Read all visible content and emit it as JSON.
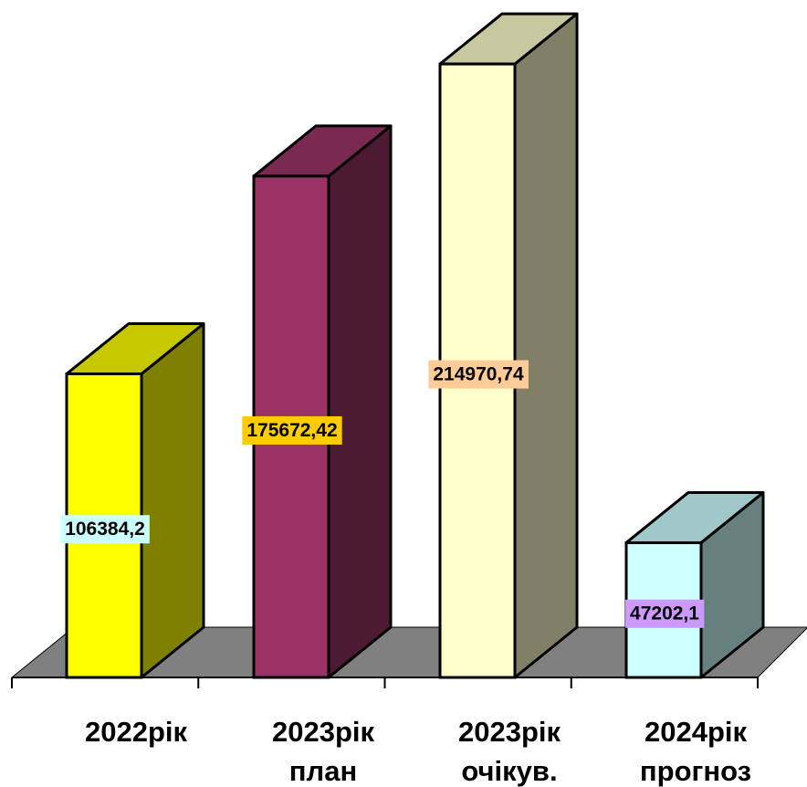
{
  "chart_data": {
    "type": "bar",
    "style": "3d-column",
    "categories": [
      {
        "line1": "2022рік",
        "line2": ""
      },
      {
        "line1": "2023рік",
        "line2": "план"
      },
      {
        "line1": "2023рік",
        "line2": "очікув."
      },
      {
        "line1": "2024рік",
        "line2": "прогноз"
      }
    ],
    "values": [
      106384.2,
      175672.42,
      214970.74,
      47202.1
    ],
    "value_labels": [
      "106384,2",
      "175672,42",
      "214970,74",
      "47202,1"
    ],
    "ylim": [
      0,
      215000
    ],
    "grid": false,
    "legend": "none",
    "colors": {
      "bars": [
        {
          "front": "#ffff00",
          "side": "#808000",
          "top": "#c8c800"
        },
        {
          "front": "#993366",
          "side": "#4d1a33",
          "top": "#7a2950"
        },
        {
          "front": "#ffffcc",
          "side": "#808066",
          "top": "#c8c8a0"
        },
        {
          "front": "#ccffff",
          "side": "#668080",
          "top": "#a0c8c8"
        }
      ],
      "label_backgrounds": [
        "#ccffff",
        "#ffcc00",
        "#ffcc99",
        "#cc99ff"
      ],
      "floor": "#808080"
    }
  }
}
